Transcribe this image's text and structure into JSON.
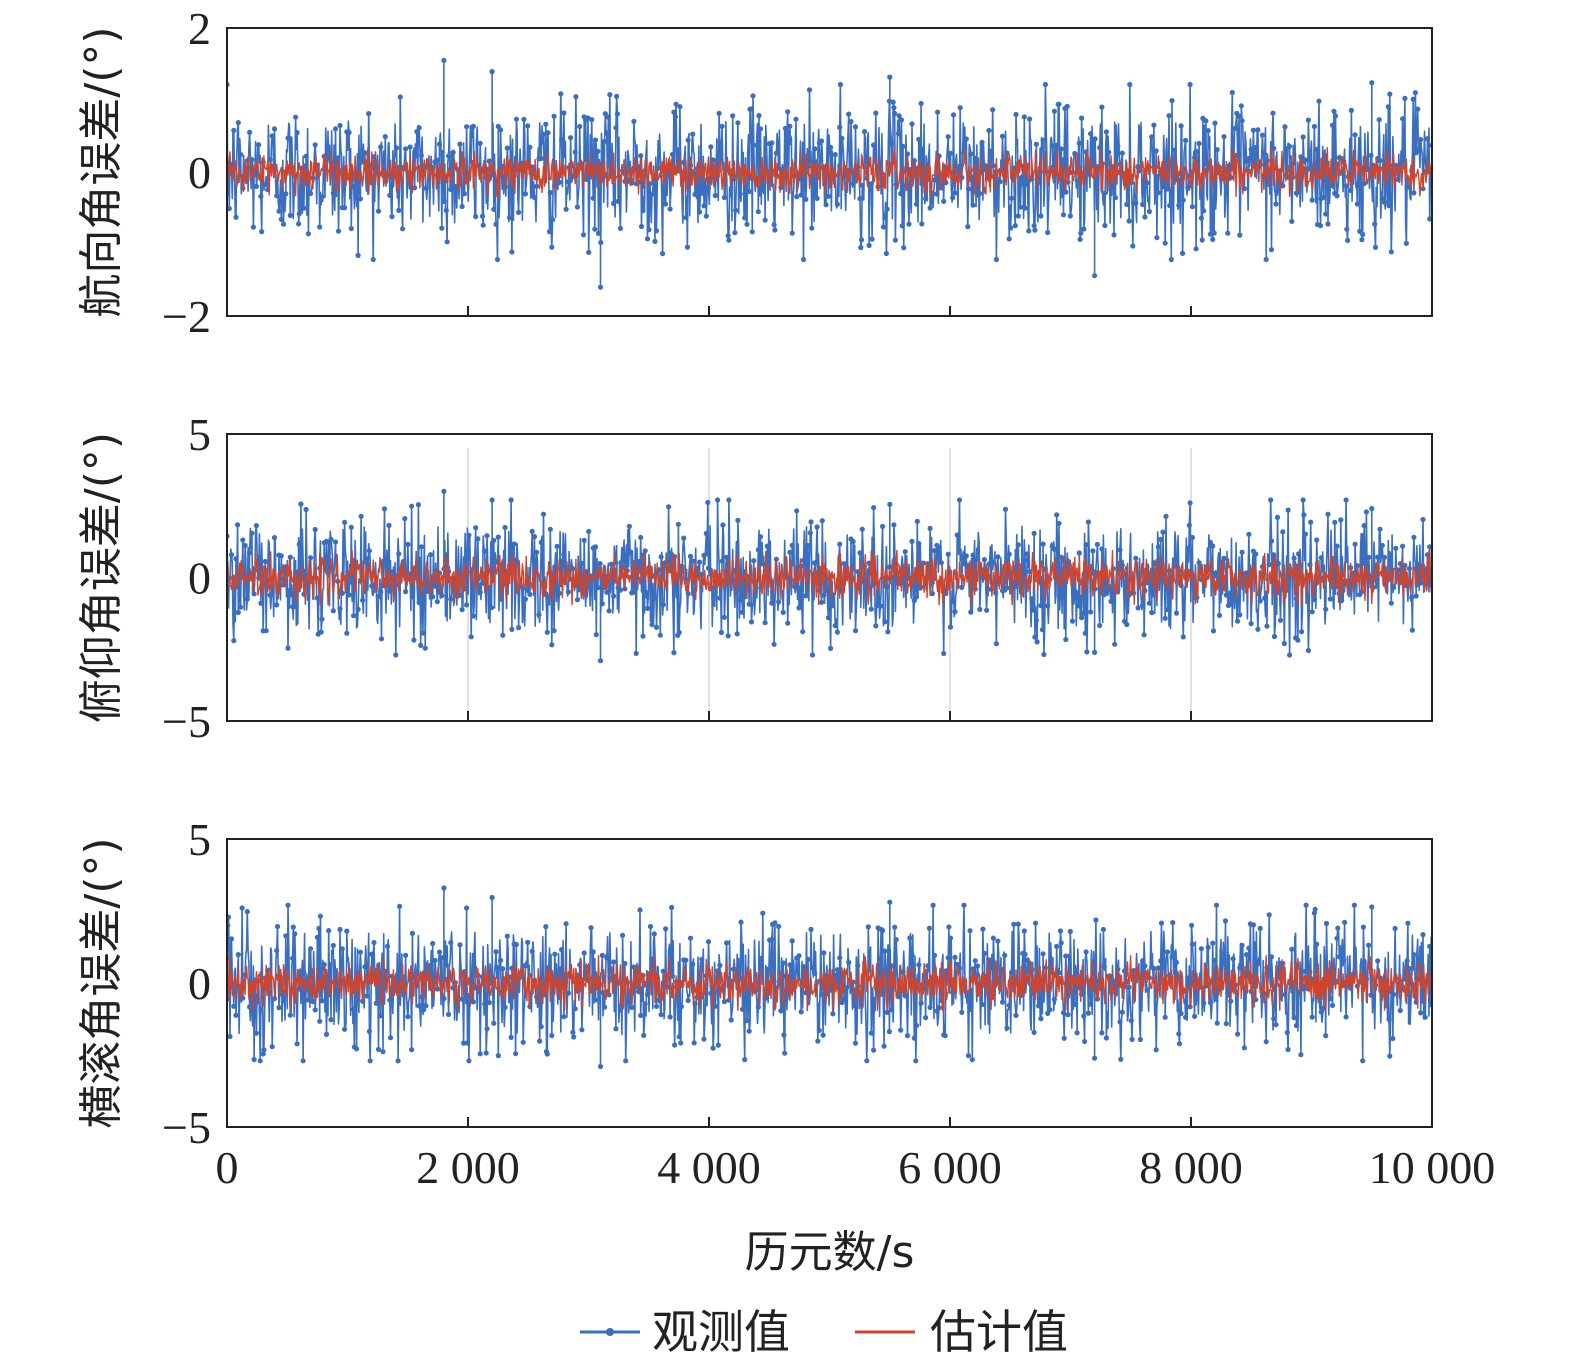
{
  "chart_data": [
    {
      "type": "line",
      "panel": "top",
      "ylabel": "航向角误差/(°)",
      "ylim": [
        -2,
        2
      ],
      "yticks": [
        -2,
        0,
        2
      ],
      "ytick_labels": [
        "−2",
        "0",
        "2"
      ],
      "xlim": [
        0,
        10000
      ],
      "grid": false,
      "series": [
        {
          "name": "观测值",
          "color": "#3a6fc0",
          "marker": "dot",
          "amplitude_approx": 0.9,
          "peak_max": 1.55,
          "peak_min": -1.6
        },
        {
          "name": "估计值",
          "color": "#d2432a",
          "marker": "none",
          "amplitude_approx": 0.25
        }
      ]
    },
    {
      "type": "line",
      "panel": "middle",
      "ylabel": "俯仰角误差/(°)",
      "ylim": [
        -5,
        5
      ],
      "yticks": [
        -5,
        0,
        5
      ],
      "ytick_labels": [
        "−5",
        "0",
        "5"
      ],
      "xlim": [
        0,
        10000
      ],
      "grid": true,
      "series": [
        {
          "name": "观测值",
          "color": "#3a6fc0",
          "marker": "dot",
          "amplitude_approx": 2.0,
          "peak_max": 3.0,
          "peak_min": -2.9
        },
        {
          "name": "估计值",
          "color": "#d2432a",
          "marker": "none",
          "amplitude_approx": 0.7
        }
      ]
    },
    {
      "type": "line",
      "panel": "bottom",
      "ylabel": "横滚角误差/(°)",
      "ylim": [
        -5,
        5
      ],
      "yticks": [
        -5,
        0,
        5
      ],
      "ytick_labels": [
        "−5",
        "0",
        "5"
      ],
      "xlim": [
        0,
        10000
      ],
      "grid": false,
      "xlabel": "历元数/s",
      "xticks": [
        0,
        2000,
        4000,
        6000,
        8000,
        10000
      ],
      "xtick_labels": [
        "0",
        "2 000",
        "4 000",
        "6 000",
        "8 000",
        "10 000"
      ],
      "series": [
        {
          "name": "观测值",
          "color": "#3a6fc0",
          "marker": "dot",
          "amplitude_approx": 2.0,
          "peak_max": 3.3,
          "peak_min": -2.9
        },
        {
          "name": "估计值",
          "color": "#d2432a",
          "marker": "none",
          "amplitude_approx": 0.7
        }
      ]
    }
  ],
  "legend": {
    "placement": "bottom-center",
    "items": [
      {
        "label": "观测值",
        "color": "#3a6fc0",
        "marker": "dot"
      },
      {
        "label": "估计值",
        "color": "#d2432a",
        "marker": "none"
      }
    ]
  }
}
